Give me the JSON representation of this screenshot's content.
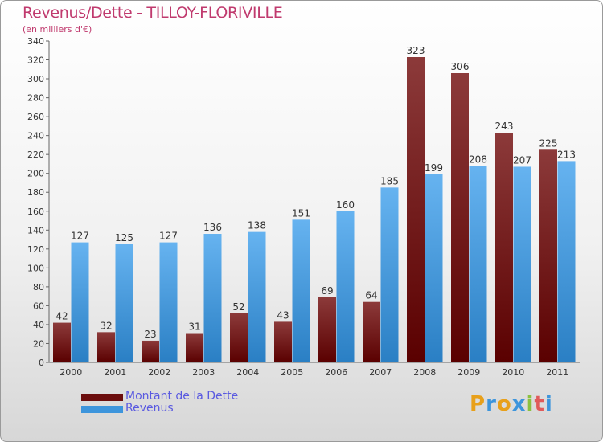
{
  "title": "Revenus/Dette - TILLOY-FLORIVILLE",
  "subtitle": "(en milliers d'€)",
  "colors": {
    "dette": "#6b0d0d",
    "revenus": "#3d95dc",
    "title": "#c03a6e",
    "legend_text": "#5a5ae0"
  },
  "legend": [
    {
      "label": "Montant de la Dette",
      "color": "#6b0d0d"
    },
    {
      "label": "Revenus",
      "color": "#3d95dc"
    }
  ],
  "logo": {
    "text": "Proxiti"
  },
  "chart_data": {
    "type": "bar",
    "title": "Revenus/Dette - TILLOY-FLORIVILLE",
    "ylabel": "(en milliers d'€)",
    "categories": [
      "2000",
      "2001",
      "2002",
      "2003",
      "2004",
      "2005",
      "2006",
      "2007",
      "2008",
      "2009",
      "2010",
      "2011"
    ],
    "series": [
      {
        "name": "Montant de la Dette",
        "values": [
          42,
          32,
          23,
          31,
          52,
          43,
          69,
          64,
          323,
          306,
          243,
          225
        ]
      },
      {
        "name": "Revenus",
        "values": [
          127,
          125,
          127,
          136,
          138,
          151,
          160,
          185,
          199,
          208,
          207,
          213
        ]
      }
    ],
    "ylim": [
      0,
      340
    ],
    "yticks": [
      0,
      20,
      40,
      60,
      80,
      100,
      120,
      140,
      160,
      180,
      200,
      220,
      240,
      260,
      280,
      300,
      320,
      340
    ],
    "grid": false,
    "legend_position": "bottom-left"
  }
}
